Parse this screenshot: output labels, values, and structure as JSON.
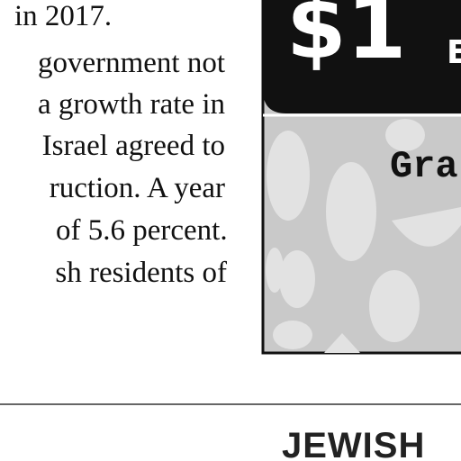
{
  "article": {
    "lines": [
      "in 2017.",
      "government not",
      "a growth rate in",
      "Israel agreed to",
      "ruction. A year",
      "of 5.6 percent.",
      "sh residents of"
    ]
  },
  "ad": {
    "headline": "$1",
    "subtext": "E",
    "label": "Gra"
  },
  "footer": {
    "section": "JEWISH"
  }
}
